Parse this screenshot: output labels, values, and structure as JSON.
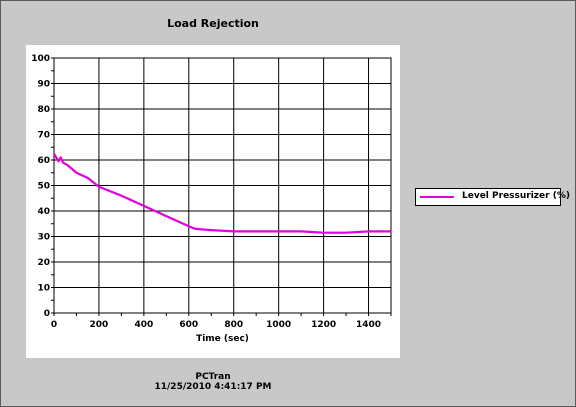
{
  "chart_data": {
    "type": "line",
    "title": "Load Rejection",
    "xlabel": "Time (sec)",
    "ylabel": "",
    "xlim": [
      0,
      1500
    ],
    "ylim": [
      0,
      100
    ],
    "xticks": [
      0,
      200,
      400,
      600,
      800,
      1000,
      1200,
      1400
    ],
    "yticks": [
      0,
      10,
      20,
      30,
      40,
      50,
      60,
      70,
      80,
      90,
      100
    ],
    "grid": true,
    "legend_position": "right",
    "series": [
      {
        "name": "Level Pressurizer (%)",
        "color": "#e000e0",
        "x": [
          0,
          10,
          20,
          30,
          40,
          60,
          100,
          150,
          200,
          300,
          400,
          500,
          600,
          630,
          700,
          800,
          900,
          1000,
          1100,
          1200,
          1300,
          1400,
          1500
        ],
        "y": [
          62.5,
          61,
          59.5,
          61,
          59,
          58,
          55,
          53,
          49.5,
          46,
          42,
          38,
          34,
          33,
          32.5,
          32,
          32,
          32,
          32,
          31.5,
          31.5,
          32,
          32
        ]
      }
    ]
  },
  "footer": {
    "line1": "PCTran",
    "line2": "11/25/2010 4:41:17 PM"
  }
}
